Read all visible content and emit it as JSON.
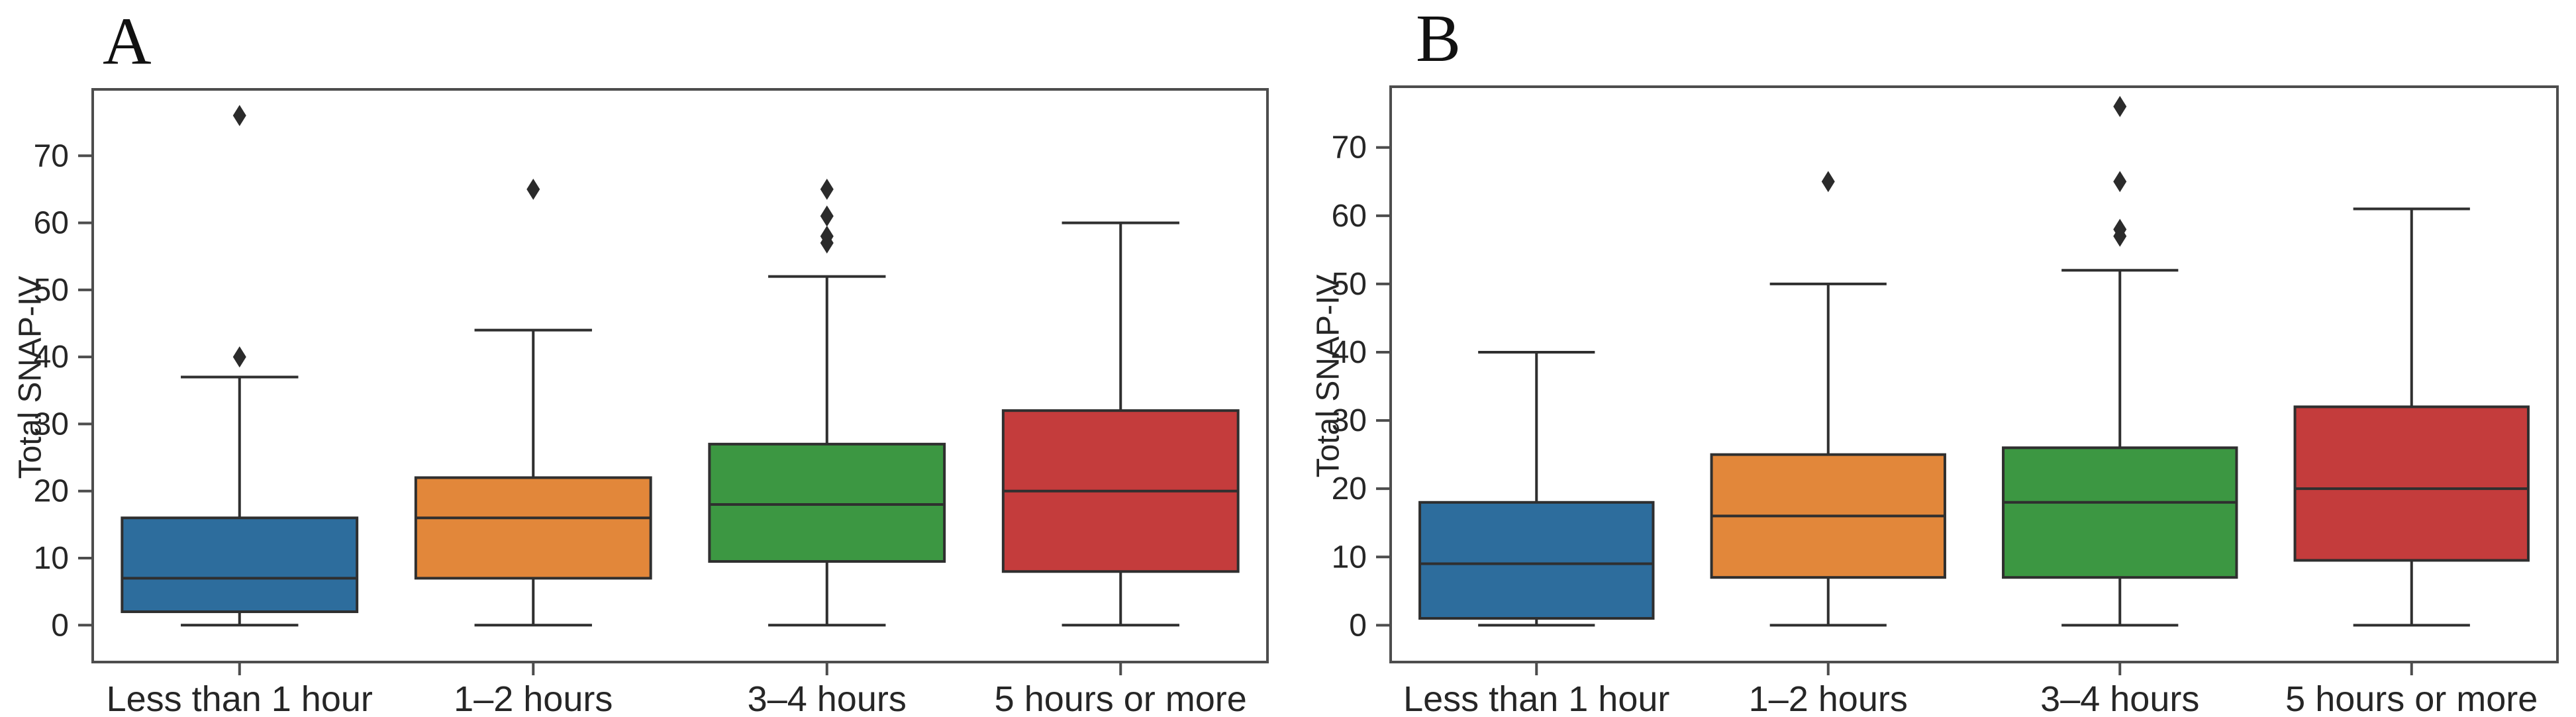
{
  "figure": {
    "background": "#ffffff",
    "panel_count": 2
  },
  "style": {
    "box_edge_color": "#2f2f2f",
    "whisker_color": "#2f2f2f",
    "median_color": "#2f2f2f",
    "outlier_color": "#2b2b2b",
    "axis_color": "#4d4d4d",
    "text_color": "#262626"
  },
  "chart_data": [
    {
      "type": "box",
      "title": "A",
      "ylabel": "Total SNAP-IV",
      "xlabel": "",
      "yticks": [
        0,
        10,
        20,
        30,
        40,
        50,
        60,
        70
      ],
      "ylim": [
        -5.5,
        79.9
      ],
      "grid": false,
      "legend": "none",
      "categories": [
        "Less than 1 hour",
        "1–2 hours",
        "3–4 hours",
        "5 hours or more"
      ],
      "series": [
        {
          "category": "Less than 1 hour",
          "color": "#2d6d9d",
          "whisker_low": 0,
          "q1": 2,
          "median": 7,
          "q3": 16,
          "whisker_high": 37,
          "outliers": [
            40,
            76
          ]
        },
        {
          "category": "1–2 hours",
          "color": "#e2873a",
          "whisker_low": 0,
          "q1": 7,
          "median": 16,
          "q3": 22,
          "whisker_high": 44,
          "outliers": [
            65
          ]
        },
        {
          "category": "3–4 hours",
          "color": "#3c9742",
          "whisker_low": 0,
          "q1": 9.5,
          "median": 18,
          "q3": 27,
          "whisker_high": 52,
          "outliers": [
            57,
            58,
            61,
            65
          ]
        },
        {
          "category": "5 hours or more",
          "color": "#c43c3c",
          "whisker_low": 0,
          "q1": 8,
          "median": 20,
          "q3": 32,
          "whisker_high": 60,
          "outliers": []
        }
      ]
    },
    {
      "type": "box",
      "title": "B",
      "ylabel": "Total SNAP-IV",
      "xlabel": "",
      "yticks": [
        0,
        10,
        20,
        30,
        40,
        50,
        60,
        70
      ],
      "ylim": [
        -5.4,
        78.9
      ],
      "grid": false,
      "legend": "none",
      "categories": [
        "Less than 1 hour",
        "1–2 hours",
        "3–4 hours",
        "5 hours or more"
      ],
      "series": [
        {
          "category": "Less than 1 hour",
          "color": "#2d6d9d",
          "whisker_low": 0,
          "q1": 1,
          "median": 9,
          "q3": 18,
          "whisker_high": 40,
          "outliers": []
        },
        {
          "category": "1–2 hours",
          "color": "#e2873a",
          "whisker_low": 0,
          "q1": 7,
          "median": 16,
          "q3": 25,
          "whisker_high": 50,
          "outliers": [
            65
          ]
        },
        {
          "category": "3–4 hours",
          "color": "#3c9742",
          "whisker_low": 0,
          "q1": 7,
          "median": 18,
          "q3": 26,
          "whisker_high": 52,
          "outliers": [
            57,
            58,
            65,
            76
          ]
        },
        {
          "category": "5 hours or more",
          "color": "#c43c3c",
          "whisker_low": 0,
          "q1": 9.5,
          "median": 20,
          "q3": 32,
          "whisker_high": 61,
          "outliers": []
        }
      ]
    }
  ]
}
